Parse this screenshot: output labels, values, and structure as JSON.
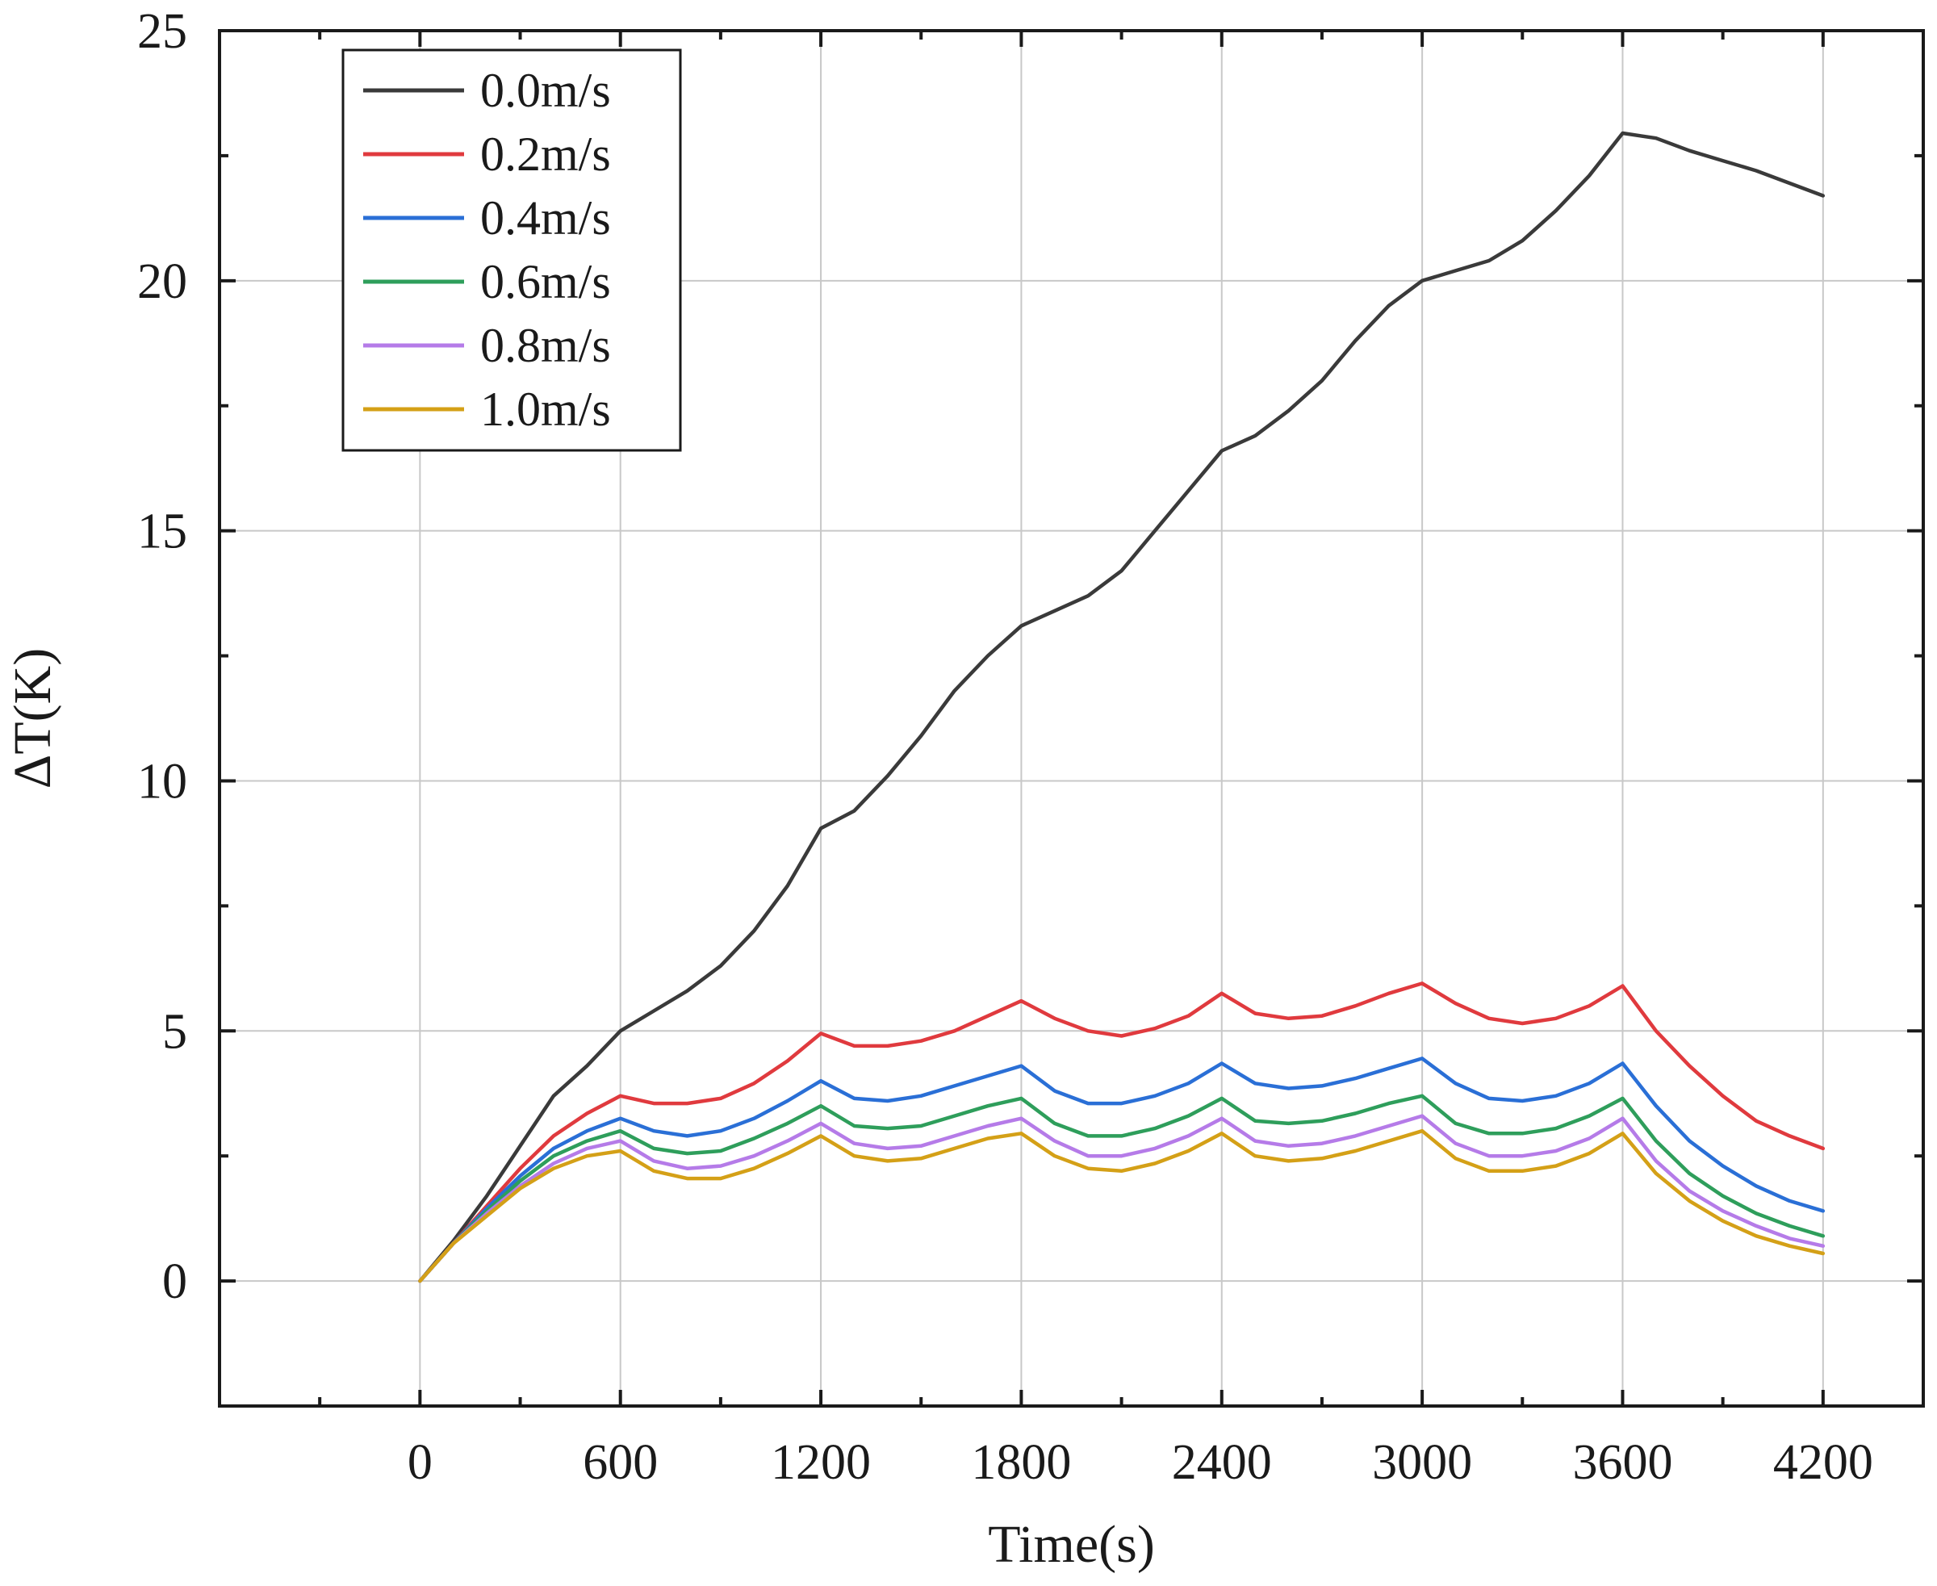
{
  "chart_data": {
    "type": "line",
    "title": "",
    "xlabel": "Time(s)",
    "ylabel": "ΔT(K)",
    "xlim": [
      -600,
      4500
    ],
    "ylim": [
      -2.5,
      25
    ],
    "xticks": [
      0,
      600,
      1200,
      1800,
      2400,
      3000,
      3600,
      4200
    ],
    "xtick_labels": [
      "0",
      "600",
      "1200",
      "1800",
      "2400",
      "3000",
      "3600",
      "4200"
    ],
    "yticks": [
      0,
      5,
      10,
      15,
      20,
      25
    ],
    "ytick_labels": [
      "0",
      "5",
      "10",
      "15",
      "20",
      "25"
    ],
    "grid": true,
    "legend_position": "top-left",
    "series": [
      {
        "name": "0.0m/s",
        "color": "#3a3a3a",
        "x": [
          0,
          100,
          200,
          300,
          400,
          500,
          600,
          700,
          800,
          900,
          1000,
          1100,
          1200,
          1300,
          1400,
          1500,
          1600,
          1700,
          1800,
          1900,
          2000,
          2100,
          2200,
          2300,
          2400,
          2500,
          2600,
          2700,
          2800,
          2900,
          3000,
          3100,
          3200,
          3300,
          3400,
          3500,
          3600,
          3700,
          3800,
          3900,
          4000,
          4100,
          4200
        ],
        "y": [
          0,
          0.8,
          1.7,
          2.7,
          3.7,
          4.3,
          5.0,
          5.4,
          5.8,
          6.3,
          7.0,
          7.9,
          9.05,
          9.4,
          10.1,
          10.9,
          11.8,
          12.5,
          13.1,
          13.4,
          13.7,
          14.2,
          15.0,
          15.8,
          16.6,
          16.9,
          17.4,
          18.0,
          18.8,
          19.5,
          20.0,
          20.2,
          20.4,
          20.8,
          21.4,
          22.1,
          22.95,
          22.85,
          22.6,
          22.4,
          22.2,
          21.95,
          21.7
        ]
      },
      {
        "name": "0.2m/s",
        "color": "#e03a3e",
        "x": [
          0,
          100,
          200,
          300,
          400,
          500,
          600,
          700,
          800,
          900,
          1000,
          1100,
          1200,
          1300,
          1400,
          1500,
          1600,
          1700,
          1800,
          1900,
          2000,
          2100,
          2200,
          2300,
          2400,
          2500,
          2600,
          2700,
          2800,
          2900,
          3000,
          3100,
          3200,
          3300,
          3400,
          3500,
          3600,
          3700,
          3800,
          3900,
          4000,
          4100,
          4200
        ],
        "y": [
          0,
          0.75,
          1.5,
          2.25,
          2.9,
          3.35,
          3.7,
          3.55,
          3.55,
          3.65,
          3.95,
          4.4,
          4.95,
          4.7,
          4.7,
          4.8,
          5.0,
          5.3,
          5.6,
          5.25,
          5.0,
          4.9,
          5.05,
          5.3,
          5.75,
          5.35,
          5.25,
          5.3,
          5.5,
          5.75,
          5.95,
          5.55,
          5.25,
          5.15,
          5.25,
          5.5,
          5.9,
          5.0,
          4.3,
          3.7,
          3.2,
          2.9,
          2.65
        ]
      },
      {
        "name": "0.4m/s",
        "color": "#2a6fd6",
        "x": [
          0,
          100,
          200,
          300,
          400,
          500,
          600,
          700,
          800,
          900,
          1000,
          1100,
          1200,
          1300,
          1400,
          1500,
          1600,
          1700,
          1800,
          1900,
          2000,
          2100,
          2200,
          2300,
          2400,
          2500,
          2600,
          2700,
          2800,
          2900,
          3000,
          3100,
          3200,
          3300,
          3400,
          3500,
          3600,
          3700,
          3800,
          3900,
          4000,
          4100,
          4200
        ],
        "y": [
          0,
          0.75,
          1.45,
          2.1,
          2.65,
          3.0,
          3.25,
          3.0,
          2.9,
          3.0,
          3.25,
          3.6,
          4.0,
          3.65,
          3.6,
          3.7,
          3.9,
          4.1,
          4.3,
          3.8,
          3.55,
          3.55,
          3.7,
          3.95,
          4.35,
          3.95,
          3.85,
          3.9,
          4.05,
          4.25,
          4.45,
          3.95,
          3.65,
          3.6,
          3.7,
          3.95,
          4.35,
          3.5,
          2.8,
          2.3,
          1.9,
          1.6,
          1.4
        ]
      },
      {
        "name": "0.6m/s",
        "color": "#2e9e5b",
        "x": [
          0,
          100,
          200,
          300,
          400,
          500,
          600,
          700,
          800,
          900,
          1000,
          1100,
          1200,
          1300,
          1400,
          1500,
          1600,
          1700,
          1800,
          1900,
          2000,
          2100,
          2200,
          2300,
          2400,
          2500,
          2600,
          2700,
          2800,
          2900,
          3000,
          3100,
          3200,
          3300,
          3400,
          3500,
          3600,
          3700,
          3800,
          3900,
          4000,
          4100,
          4200
        ],
        "y": [
          0,
          0.75,
          1.4,
          2.0,
          2.5,
          2.8,
          3.0,
          2.65,
          2.55,
          2.6,
          2.85,
          3.15,
          3.5,
          3.1,
          3.05,
          3.1,
          3.3,
          3.5,
          3.65,
          3.15,
          2.9,
          2.9,
          3.05,
          3.3,
          3.65,
          3.2,
          3.15,
          3.2,
          3.35,
          3.55,
          3.7,
          3.15,
          2.95,
          2.95,
          3.05,
          3.3,
          3.65,
          2.8,
          2.15,
          1.7,
          1.35,
          1.1,
          0.9
        ]
      },
      {
        "name": "0.8m/s",
        "color": "#b57be8",
        "x": [
          0,
          100,
          200,
          300,
          400,
          500,
          600,
          700,
          800,
          900,
          1000,
          1100,
          1200,
          1300,
          1400,
          1500,
          1600,
          1700,
          1800,
          1900,
          2000,
          2100,
          2200,
          2300,
          2400,
          2500,
          2600,
          2700,
          2800,
          2900,
          3000,
          3100,
          3200,
          3300,
          3400,
          3500,
          3600,
          3700,
          3800,
          3900,
          4000,
          4100,
          4200
        ],
        "y": [
          0,
          0.75,
          1.35,
          1.9,
          2.35,
          2.65,
          2.8,
          2.4,
          2.25,
          2.3,
          2.5,
          2.8,
          3.15,
          2.75,
          2.65,
          2.7,
          2.9,
          3.1,
          3.25,
          2.8,
          2.5,
          2.5,
          2.65,
          2.9,
          3.25,
          2.8,
          2.7,
          2.75,
          2.9,
          3.1,
          3.3,
          2.75,
          2.5,
          2.5,
          2.6,
          2.85,
          3.25,
          2.4,
          1.8,
          1.4,
          1.1,
          0.85,
          0.7
        ]
      },
      {
        "name": "1.0m/s",
        "color": "#d4a017",
        "x": [
          0,
          100,
          200,
          300,
          400,
          500,
          600,
          700,
          800,
          900,
          1000,
          1100,
          1200,
          1300,
          1400,
          1500,
          1600,
          1700,
          1800,
          1900,
          2000,
          2100,
          2200,
          2300,
          2400,
          2500,
          2600,
          2700,
          2800,
          2900,
          3000,
          3100,
          3200,
          3300,
          3400,
          3500,
          3600,
          3700,
          3800,
          3900,
          4000,
          4100,
          4200
        ],
        "y": [
          0,
          0.75,
          1.3,
          1.85,
          2.25,
          2.5,
          2.6,
          2.2,
          2.05,
          2.05,
          2.25,
          2.55,
          2.9,
          2.5,
          2.4,
          2.45,
          2.65,
          2.85,
          2.95,
          2.5,
          2.25,
          2.2,
          2.35,
          2.6,
          2.95,
          2.5,
          2.4,
          2.45,
          2.6,
          2.8,
          3.0,
          2.45,
          2.2,
          2.2,
          2.3,
          2.55,
          2.95,
          2.15,
          1.6,
          1.2,
          0.9,
          0.7,
          0.55
        ]
      }
    ]
  }
}
